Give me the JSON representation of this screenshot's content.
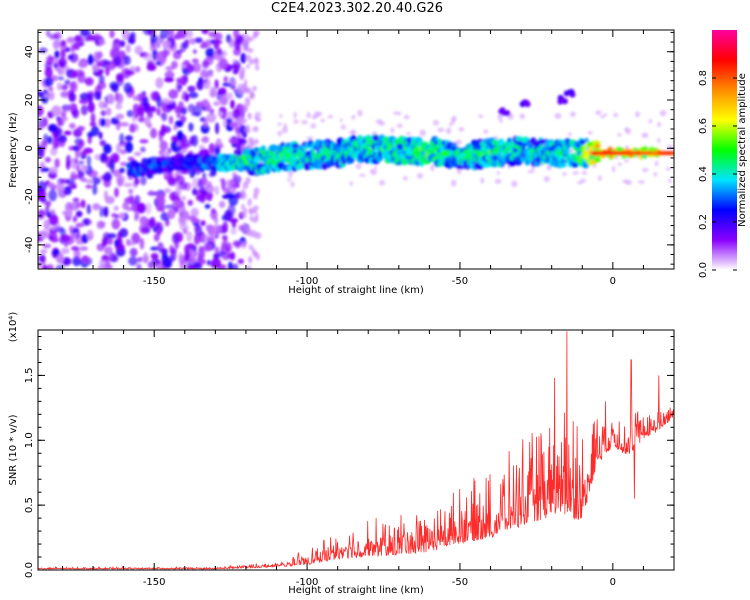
{
  "title": "C2E4.2023.302.20.40.G26",
  "chart_data": [
    {
      "type": "heatmap",
      "xlabel": "Height of straight line (km)",
      "ylabel": "Frequency (Hz)",
      "xlim": [
        -188,
        20
      ],
      "ylim": [
        -50,
        49
      ],
      "xticks": [
        -150,
        -100,
        -50,
        0
      ],
      "xtick_labels": [
        "-150",
        "-100",
        "-50",
        "0"
      ],
      "yticks": [
        -40,
        -20,
        0,
        20,
        40
      ],
      "ytick_labels": [
        "-40",
        "-20",
        "0",
        "20",
        "40"
      ],
      "colorbar": {
        "label": "Normalized spectral amplitude",
        "range": [
          0,
          1
        ],
        "ticks": [
          0.0,
          0.2,
          0.4,
          0.6,
          0.8
        ],
        "tick_labels": [
          "0.0",
          "0.2",
          "0.4",
          "0.6",
          "0.8"
        ],
        "colors": [
          "#ffffff",
          "#8a00ff",
          "#0000ff",
          "#00e5ff",
          "#00ff00",
          "#ffff00",
          "#ff8c00",
          "#ff0000",
          "#ff00a0"
        ]
      },
      "signal_ridge": [
        {
          "x": -158,
          "y": -9,
          "amp": 0.35
        },
        {
          "x": -150,
          "y": -7,
          "amp": 0.35
        },
        {
          "x": -140,
          "y": -6,
          "amp": 0.3
        },
        {
          "x": -130,
          "y": -6,
          "amp": 0.4
        },
        {
          "x": -120,
          "y": -6,
          "amp": 0.55
        },
        {
          "x": -110,
          "y": -4,
          "amp": 0.55
        },
        {
          "x": -100,
          "y": -3,
          "amp": 0.5
        },
        {
          "x": -90,
          "y": -2,
          "amp": 0.5
        },
        {
          "x": -80,
          "y": 0,
          "amp": 0.55
        },
        {
          "x": -70,
          "y": -1,
          "amp": 0.55
        },
        {
          "x": -60,
          "y": -1,
          "amp": 0.6
        },
        {
          "x": -50,
          "y": -3,
          "amp": 0.5
        },
        {
          "x": -40,
          "y": -2,
          "amp": 0.55
        },
        {
          "x": -30,
          "y": -1,
          "amp": 0.5
        },
        {
          "x": -20,
          "y": -2,
          "amp": 0.5
        },
        {
          "x": -12,
          "y": -2,
          "amp": 0.55
        },
        {
          "x": -5,
          "y": -2,
          "amp": 0.85
        },
        {
          "x": 5,
          "y": -2,
          "amp": 0.8
        },
        {
          "x": 15,
          "y": -2,
          "amp": 0.75
        }
      ],
      "secondary_branch": [
        {
          "x": -35,
          "y": 15
        },
        {
          "x": -28,
          "y": 18
        },
        {
          "x": -17,
          "y": 20
        },
        {
          "x": -14,
          "y": 23
        }
      ],
      "noise_region_xlim": [
        -188,
        -120
      ]
    },
    {
      "type": "line",
      "xlabel": "Height of straight line (km)",
      "ylabel": "SNR (10 * v/v)",
      "ylabel_multiplier": "(x10⁴)",
      "xlim": [
        -188,
        20
      ],
      "ylim": [
        0,
        1.85
      ],
      "xticks": [
        -150,
        -100,
        -50,
        0
      ],
      "xtick_labels": [
        "-150",
        "-100",
        "-50",
        "0"
      ],
      "yticks": [
        0.0,
        0.5,
        1.0,
        1.5
      ],
      "ytick_labels": [
        "0.0",
        "0.5",
        "1.0",
        "1.5"
      ],
      "series": [
        {
          "color": "#ff2a2a",
          "envelope": [
            {
              "x": -188,
              "base": 0.01,
              "amp": 0.01
            },
            {
              "x": -130,
              "base": 0.01,
              "amp": 0.01
            },
            {
              "x": -120,
              "base": 0.02,
              "amp": 0.02
            },
            {
              "x": -110,
              "base": 0.03,
              "amp": 0.03
            },
            {
              "x": -100,
              "base": 0.06,
              "amp": 0.08
            },
            {
              "x": -90,
              "base": 0.12,
              "amp": 0.15
            },
            {
              "x": -80,
              "base": 0.15,
              "amp": 0.2
            },
            {
              "x": -70,
              "base": 0.17,
              "amp": 0.22
            },
            {
              "x": -60,
              "base": 0.2,
              "amp": 0.25
            },
            {
              "x": -50,
              "base": 0.28,
              "amp": 0.3
            },
            {
              "x": -40,
              "base": 0.33,
              "amp": 0.35
            },
            {
              "x": -30,
              "base": 0.45,
              "amp": 0.45
            },
            {
              "x": -20,
              "base": 0.55,
              "amp": 0.55
            },
            {
              "x": -15,
              "base": 0.6,
              "amp": 0.75
            },
            {
              "x": -10,
              "base": 0.5,
              "amp": 0.5
            },
            {
              "x": -5,
              "base": 0.9,
              "amp": 0.35
            },
            {
              "x": 0,
              "base": 1.0,
              "amp": 0.2
            },
            {
              "x": 5,
              "base": 0.95,
              "amp": 0.3
            },
            {
              "x": 10,
              "base": 1.05,
              "amp": 0.15
            },
            {
              "x": 15,
              "base": 1.1,
              "amp": 0.12
            },
            {
              "x": 20,
              "base": 1.2,
              "amp": 0.1
            }
          ],
          "peaks": [
            {
              "x": -15,
              "y": 1.84
            },
            {
              "x": 6,
              "y": 1.62
            },
            {
              "x": -19,
              "y": 1.48
            },
            {
              "x": 15,
              "y": 1.5
            },
            {
              "x": 7,
              "y": 0.55
            }
          ]
        }
      ]
    }
  ]
}
